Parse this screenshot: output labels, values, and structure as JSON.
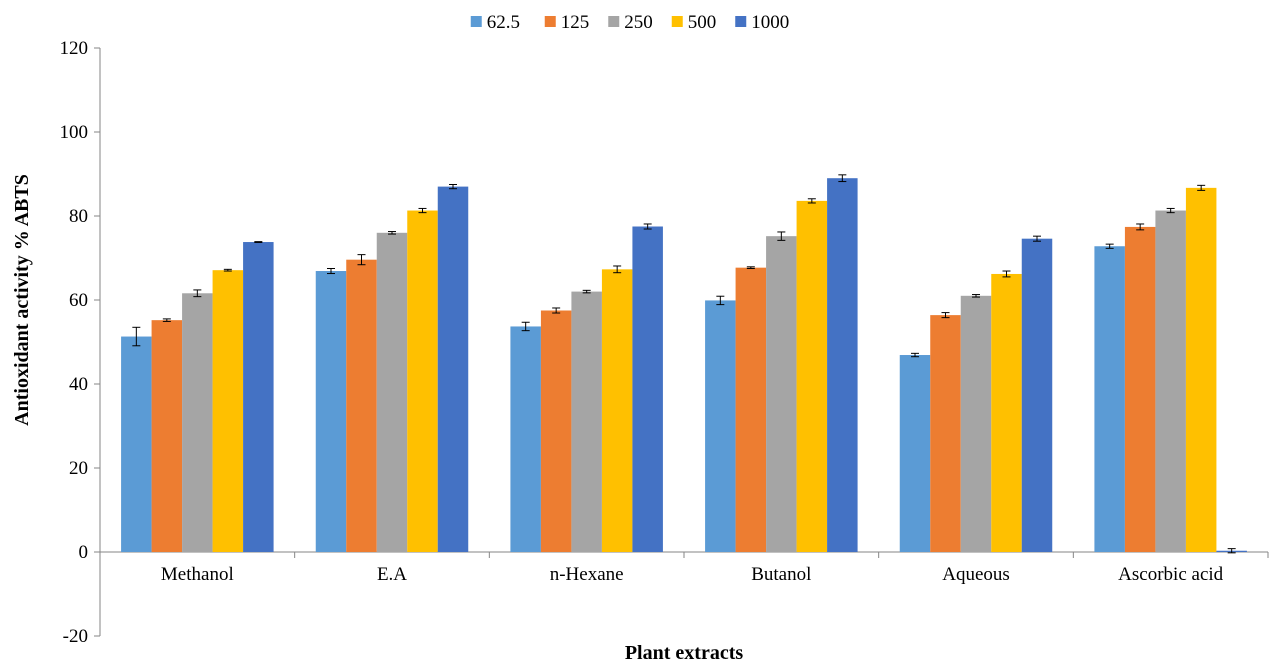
{
  "chart_data": {
    "type": "bar",
    "title": "",
    "xlabel": "Plant extracts",
    "ylabel": "Antioxidant activity % ABTS",
    "ylim": [
      -20,
      120
    ],
    "yticks": [
      -20,
      0,
      20,
      40,
      60,
      80,
      100,
      120
    ],
    "legend_position": "top",
    "categories": [
      "Methanol",
      "E.A",
      "n-Hexane",
      "Butanol",
      "Aqueous",
      "Ascorbic acid"
    ],
    "series": [
      {
        "name": "62.5",
        "color": "#5B9BD5",
        "values": [
          51.3,
          66.9,
          53.7,
          59.9,
          46.9,
          72.8
        ],
        "errors": [
          2.2,
          0.6,
          1.0,
          1.0,
          0.4,
          0.5
        ]
      },
      {
        "name": "125",
        "color": "#ED7D31",
        "values": [
          55.2,
          69.6,
          57.5,
          67.7,
          56.4,
          77.4
        ],
        "errors": [
          0.3,
          1.2,
          0.6,
          0.2,
          0.6,
          0.7
        ]
      },
      {
        "name": "250",
        "color": "#A5A5A5",
        "values": [
          61.6,
          76.0,
          62.0,
          75.2,
          61.0,
          81.3
        ],
        "errors": [
          0.8,
          0.3,
          0.3,
          1.0,
          0.3,
          0.5
        ]
      },
      {
        "name": "500",
        "color": "#FFC000",
        "values": [
          67.1,
          81.3,
          67.3,
          83.6,
          66.2,
          86.7
        ],
        "errors": [
          0.2,
          0.5,
          0.8,
          0.5,
          0.7,
          0.6
        ]
      },
      {
        "name": "1000",
        "color": "#4472C4",
        "values": [
          73.8,
          87.0,
          77.5,
          89.0,
          74.6,
          0.3
        ],
        "errors": [
          0.1,
          0.5,
          0.6,
          0.8,
          0.6,
          0.5
        ]
      }
    ]
  }
}
